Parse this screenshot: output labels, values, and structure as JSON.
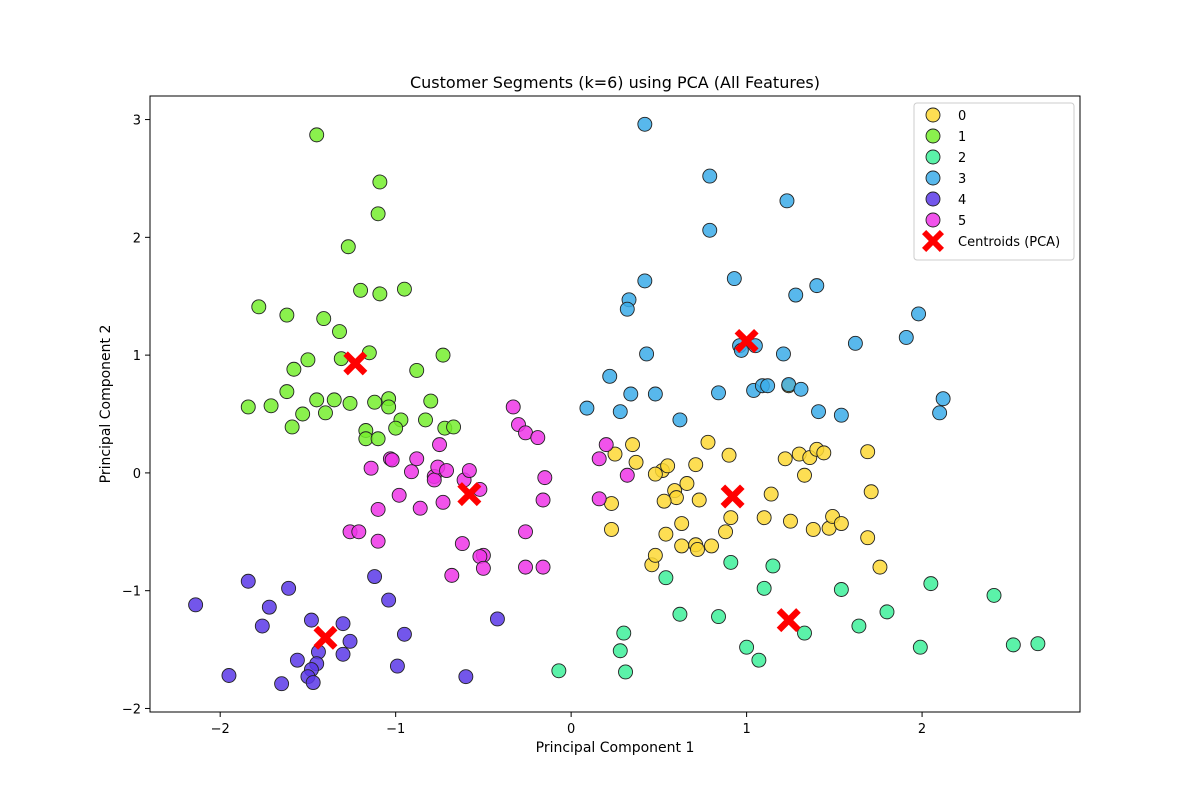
{
  "chart_data": {
    "type": "scatter",
    "title": "Customer Segments (k=6) using PCA (All Features)",
    "xlabel": "Principal Component 1",
    "ylabel": "Principal Component 2",
    "xlim": [
      -2.4,
      2.9
    ],
    "ylim": [
      -2.03,
      3.2
    ],
    "xticks": [
      -2,
      -1,
      0,
      1,
      2
    ],
    "yticks": [
      -2,
      -1,
      0,
      1,
      2,
      3
    ],
    "xtick_labels": [
      "−2",
      "−1",
      "0",
      "1",
      "2"
    ],
    "ytick_labels": [
      "−2",
      "−1",
      "0",
      "1",
      "2",
      "3"
    ],
    "grid": false,
    "legend_position": "top-right",
    "series": [
      {
        "name": "0",
        "color": "#fdd835",
        "points": [
          [
            0.25,
            0.16
          ],
          [
            0.35,
            0.24
          ],
          [
            0.37,
            0.09
          ],
          [
            0.52,
            0.02
          ],
          [
            0.55,
            0.06
          ],
          [
            0.59,
            -0.15
          ],
          [
            0.6,
            -0.21
          ],
          [
            0.66,
            -0.09
          ],
          [
            0.71,
            0.07
          ],
          [
            0.73,
            -0.23
          ],
          [
            0.78,
            0.26
          ],
          [
            0.9,
            0.15
          ],
          [
            0.23,
            -0.26
          ],
          [
            0.23,
            -0.48
          ],
          [
            0.48,
            -0.01
          ],
          [
            0.53,
            -0.24
          ],
          [
            0.54,
            -0.52
          ],
          [
            0.63,
            -0.43
          ],
          [
            0.63,
            -0.62
          ],
          [
            0.71,
            -0.61
          ],
          [
            0.72,
            -0.65
          ],
          [
            0.8,
            -0.62
          ],
          [
            0.88,
            -0.5
          ],
          [
            0.91,
            -0.38
          ],
          [
            0.46,
            -0.78
          ],
          [
            0.48,
            -0.7
          ],
          [
            1.1,
            -0.38
          ],
          [
            1.14,
            -0.18
          ],
          [
            1.22,
            0.12
          ],
          [
            1.25,
            -0.41
          ],
          [
            1.3,
            0.16
          ],
          [
            1.33,
            -0.02
          ],
          [
            1.36,
            0.13
          ],
          [
            1.38,
            -0.48
          ],
          [
            1.4,
            0.2
          ],
          [
            1.44,
            0.17
          ],
          [
            1.47,
            -0.47
          ],
          [
            1.49,
            -0.37
          ],
          [
            1.54,
            -0.43
          ],
          [
            1.69,
            0.18
          ],
          [
            1.69,
            -0.55
          ],
          [
            1.71,
            -0.16
          ],
          [
            1.76,
            -0.8
          ],
          [
            1.24,
            0.74
          ]
        ]
      },
      {
        "name": "1",
        "color": "#76ee2e",
        "points": [
          [
            -1.45,
            2.87
          ],
          [
            -1.09,
            2.47
          ],
          [
            -1.1,
            2.2
          ],
          [
            -1.27,
            1.92
          ],
          [
            -1.2,
            1.55
          ],
          [
            -0.95,
            1.56
          ],
          [
            -1.09,
            1.52
          ],
          [
            -1.78,
            1.41
          ],
          [
            -1.62,
            1.34
          ],
          [
            -1.41,
            1.31
          ],
          [
            -1.32,
            1.2
          ],
          [
            -1.15,
            1.02
          ],
          [
            -0.73,
            1.0
          ],
          [
            -1.5,
            0.96
          ],
          [
            -1.31,
            0.97
          ],
          [
            -1.58,
            0.88
          ],
          [
            -0.88,
            0.87
          ],
          [
            -1.62,
            0.69
          ],
          [
            -1.45,
            0.62
          ],
          [
            -1.35,
            0.62
          ],
          [
            -1.26,
            0.59
          ],
          [
            -1.12,
            0.6
          ],
          [
            -1.04,
            0.63
          ],
          [
            -0.8,
            0.61
          ],
          [
            -1.84,
            0.56
          ],
          [
            -1.71,
            0.57
          ],
          [
            -1.53,
            0.5
          ],
          [
            -1.4,
            0.51
          ],
          [
            -1.04,
            0.56
          ],
          [
            -0.97,
            0.45
          ],
          [
            -0.83,
            0.45
          ],
          [
            -1.59,
            0.39
          ],
          [
            -1.17,
            0.36
          ],
          [
            -1.0,
            0.38
          ],
          [
            -0.72,
            0.38
          ],
          [
            -0.67,
            0.39
          ],
          [
            -1.17,
            0.29
          ],
          [
            -1.1,
            0.29
          ]
        ]
      },
      {
        "name": "2",
        "color": "#3ef09a",
        "points": [
          [
            0.91,
            -0.76
          ],
          [
            1.15,
            -0.79
          ],
          [
            0.54,
            -0.89
          ],
          [
            1.1,
            -0.98
          ],
          [
            1.54,
            -0.99
          ],
          [
            2.05,
            -0.94
          ],
          [
            2.41,
            -1.04
          ],
          [
            0.62,
            -1.2
          ],
          [
            0.84,
            -1.22
          ],
          [
            1.8,
            -1.18
          ],
          [
            1.64,
            -1.3
          ],
          [
            0.3,
            -1.36
          ],
          [
            1.33,
            -1.36
          ],
          [
            0.28,
            -1.51
          ],
          [
            1.0,
            -1.48
          ],
          [
            1.07,
            -1.59
          ],
          [
            1.99,
            -1.48
          ],
          [
            2.52,
            -1.46
          ],
          [
            2.66,
            -1.45
          ],
          [
            -0.07,
            -1.68
          ],
          [
            0.31,
            -1.69
          ]
        ]
      },
      {
        "name": "3",
        "color": "#3bace9",
        "points": [
          [
            0.42,
            2.96
          ],
          [
            0.79,
            2.52
          ],
          [
            1.23,
            2.31
          ],
          [
            0.79,
            2.06
          ],
          [
            0.42,
            1.63
          ],
          [
            0.93,
            1.65
          ],
          [
            1.4,
            1.59
          ],
          [
            1.28,
            1.51
          ],
          [
            0.33,
            1.47
          ],
          [
            0.32,
            1.39
          ],
          [
            1.98,
            1.35
          ],
          [
            0.96,
            1.08
          ],
          [
            0.97,
            1.04
          ],
          [
            1.05,
            1.08
          ],
          [
            1.62,
            1.1
          ],
          [
            1.91,
            1.15
          ],
          [
            0.43,
            1.01
          ],
          [
            1.21,
            1.01
          ],
          [
            0.22,
            0.82
          ],
          [
            1.04,
            0.7
          ],
          [
            1.09,
            0.74
          ],
          [
            1.12,
            0.74
          ],
          [
            1.24,
            0.75
          ],
          [
            1.31,
            0.71
          ],
          [
            0.34,
            0.67
          ],
          [
            0.48,
            0.67
          ],
          [
            0.84,
            0.68
          ],
          [
            0.09,
            0.55
          ],
          [
            0.28,
            0.52
          ],
          [
            0.62,
            0.45
          ],
          [
            1.41,
            0.52
          ],
          [
            1.54,
            0.49
          ],
          [
            2.1,
            0.51
          ],
          [
            2.12,
            0.63
          ]
        ]
      },
      {
        "name": "4",
        "color": "#5a38e8",
        "points": [
          [
            -2.14,
            -1.12
          ],
          [
            -1.84,
            -0.92
          ],
          [
            -1.72,
            -1.14
          ],
          [
            -1.61,
            -0.98
          ],
          [
            -1.76,
            -1.3
          ],
          [
            -1.12,
            -0.88
          ],
          [
            -1.04,
            -1.08
          ],
          [
            -1.48,
            -1.25
          ],
          [
            -1.3,
            -1.28
          ],
          [
            -1.26,
            -1.43
          ],
          [
            -1.44,
            -1.52
          ],
          [
            -0.95,
            -1.37
          ],
          [
            -0.42,
            -1.24
          ],
          [
            -1.3,
            -1.54
          ],
          [
            -1.56,
            -1.59
          ],
          [
            -1.45,
            -1.62
          ],
          [
            -1.48,
            -1.67
          ],
          [
            -1.5,
            -1.73
          ],
          [
            -1.47,
            -1.78
          ],
          [
            -1.65,
            -1.79
          ],
          [
            -1.95,
            -1.72
          ],
          [
            -0.99,
            -1.64
          ],
          [
            -0.6,
            -1.73
          ]
        ]
      },
      {
        "name": "5",
        "color": "#ee35e8",
        "points": [
          [
            -0.33,
            0.56
          ],
          [
            -0.3,
            0.41
          ],
          [
            -0.26,
            0.34
          ],
          [
            -0.19,
            0.3
          ],
          [
            -0.75,
            0.24
          ],
          [
            -1.03,
            0.12
          ],
          [
            -1.02,
            0.11
          ],
          [
            -0.88,
            0.12
          ],
          [
            -1.14,
            0.04
          ],
          [
            -0.91,
            0.01
          ],
          [
            -0.78,
            -0.03
          ],
          [
            -0.78,
            -0.06
          ],
          [
            -0.76,
            0.05
          ],
          [
            -0.71,
            0.02
          ],
          [
            -0.61,
            -0.06
          ],
          [
            -0.58,
            0.02
          ],
          [
            -0.52,
            -0.14
          ],
          [
            -0.15,
            -0.04
          ],
          [
            -0.98,
            -0.19
          ],
          [
            -0.73,
            -0.25
          ],
          [
            -0.16,
            -0.23
          ],
          [
            -1.1,
            -0.31
          ],
          [
            -0.86,
            -0.3
          ],
          [
            -1.26,
            -0.5
          ],
          [
            -1.21,
            -0.5
          ],
          [
            -0.26,
            -0.5
          ],
          [
            -1.1,
            -0.58
          ],
          [
            -0.62,
            -0.6
          ],
          [
            -0.5,
            -0.7
          ],
          [
            -0.52,
            -0.71
          ],
          [
            -0.68,
            -0.87
          ],
          [
            -0.5,
            -0.81
          ],
          [
            -0.26,
            -0.8
          ],
          [
            -0.16,
            -0.8
          ],
          [
            0.2,
            0.24
          ],
          [
            0.16,
            0.12
          ],
          [
            0.16,
            -0.22
          ],
          [
            0.32,
            -0.02
          ]
        ]
      },
      {
        "name": "Centroids (PCA)",
        "color": "#ff0000",
        "marker": "X",
        "points": [
          [
            -1.23,
            0.93
          ],
          [
            -0.58,
            -0.18
          ],
          [
            0.92,
            -0.2
          ],
          [
            1.0,
            1.12
          ],
          [
            1.24,
            -1.25
          ],
          [
            -1.4,
            -1.4
          ]
        ]
      }
    ]
  }
}
